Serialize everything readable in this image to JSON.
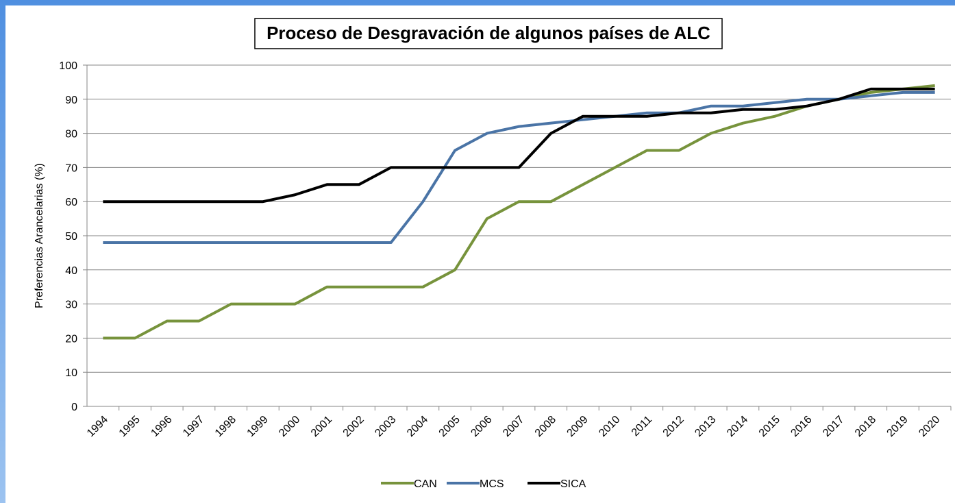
{
  "chart_data": {
    "type": "line",
    "title": "Proceso de Desgravación de algunos países de ALC",
    "y_label": "Preferencias Arancelarias (%)",
    "categories": [
      "1994",
      "1995",
      "1996",
      "1997",
      "1998",
      "1999",
      "2000",
      "2001",
      "2002",
      "2003",
      "2004",
      "2005",
      "2006",
      "2007",
      "2008",
      "2009",
      "2010",
      "2011",
      "2012",
      "2013",
      "2014",
      "2015",
      "2016",
      "2017",
      "2018",
      "2019",
      "2020"
    ],
    "series": [
      {
        "name": "CAN",
        "color": "#77933c",
        "values": [
          20,
          20,
          25,
          25,
          30,
          30,
          30,
          35,
          35,
          35,
          35,
          40,
          55,
          60,
          60,
          65,
          70,
          75,
          75,
          80,
          83,
          85,
          88,
          90,
          92,
          93,
          94
        ]
      },
      {
        "name": "MCS",
        "color": "#4a74a6",
        "values": [
          48,
          48,
          48,
          48,
          48,
          48,
          48,
          48,
          48,
          48,
          60,
          75,
          80,
          82,
          83,
          84,
          85,
          86,
          86,
          88,
          88,
          89,
          90,
          90,
          91,
          92,
          92
        ]
      },
      {
        "name": "SICA",
        "color": "#000000",
        "values": [
          60,
          60,
          60,
          60,
          60,
          60,
          62,
          65,
          65,
          70,
          70,
          70,
          70,
          70,
          80,
          85,
          85,
          85,
          86,
          86,
          87,
          87,
          88,
          90,
          93,
          93,
          93
        ]
      }
    ],
    "ylim": [
      0,
      100
    ],
    "yticks": [
      0,
      10,
      20,
      30,
      40,
      50,
      60,
      70,
      80,
      90,
      100
    ],
    "grid": true,
    "legend": "bottom"
  }
}
